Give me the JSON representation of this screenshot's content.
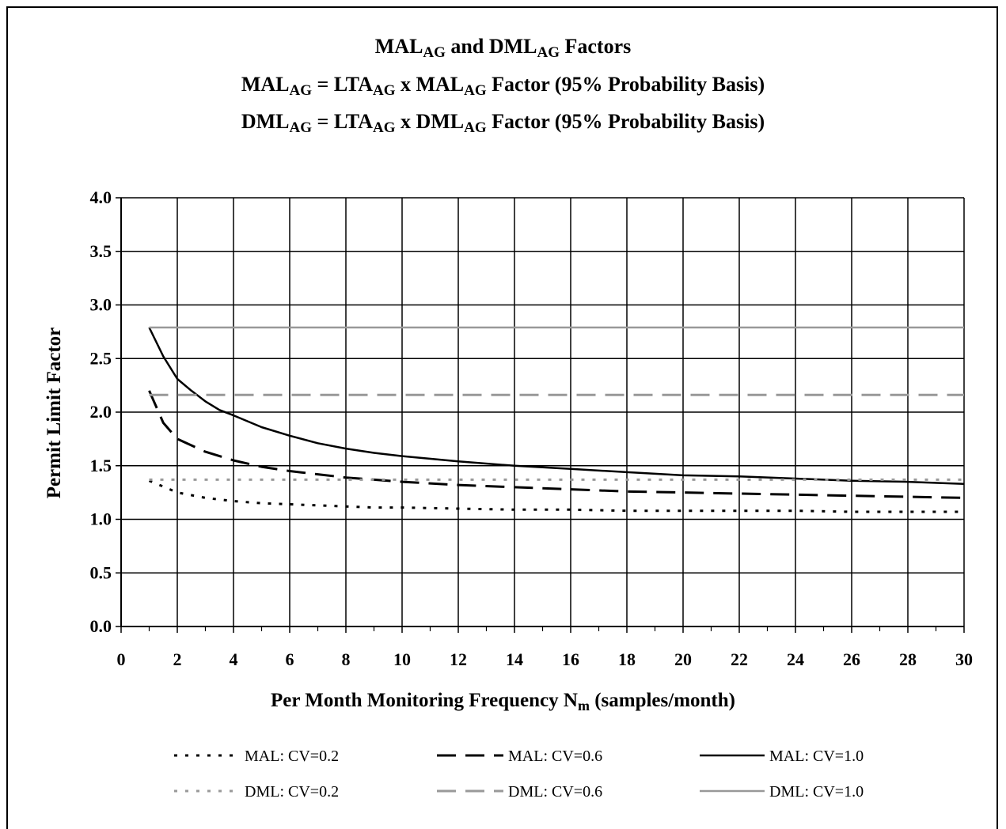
{
  "title": {
    "line1": {
      "a": "MAL",
      "a_sub": "AG",
      "b": " and DML",
      "b_sub": "AG",
      "c": " Factors"
    },
    "line2": {
      "a": "MAL",
      "a_sub": "AG",
      "b": " = LTA",
      "b_sub": "AG",
      "c": " x MAL",
      "c_sub": "AG",
      "d": " Factor  (95% Probability Basis)"
    },
    "line3": {
      "a": "DML",
      "a_sub": "AG",
      "b": " = LTA",
      "b_sub": "AG",
      "c": " x DML",
      "c_sub": "AG",
      "d": " Factor  (95% Probability Basis)"
    }
  },
  "chart_data": {
    "type": "line",
    "ylabel": "Permit Limit Factor",
    "xlabel": {
      "main": "Per Month Monitoring Frequency N",
      "sub": "m",
      "tail": " (samples/month)"
    },
    "xlim": [
      0,
      30
    ],
    "ylim": [
      0,
      4
    ],
    "xticks": [
      "0",
      "2",
      "4",
      "6",
      "8",
      "10",
      "12",
      "14",
      "16",
      "18",
      "20",
      "22",
      "24",
      "26",
      "28",
      "30"
    ],
    "yticks": [
      "0.0",
      "0.5",
      "1.0",
      "1.5",
      "2.0",
      "2.5",
      "3.0",
      "3.5",
      "4.0"
    ],
    "grid": true,
    "legend_position": "bottom",
    "series": [
      {
        "name": "MAL: CV=0.2",
        "color": "#000000",
        "style": "dotted",
        "x": [
          1,
          2,
          3,
          4,
          5,
          6,
          7,
          8,
          9,
          10,
          12,
          14,
          16,
          18,
          20,
          22,
          24,
          26,
          28,
          30
        ],
        "y": [
          1.36,
          1.25,
          1.2,
          1.17,
          1.15,
          1.14,
          1.13,
          1.12,
          1.11,
          1.11,
          1.1,
          1.09,
          1.09,
          1.08,
          1.08,
          1.08,
          1.08,
          1.07,
          1.07,
          1.07
        ]
      },
      {
        "name": "MAL: CV=0.6",
        "color": "#000000",
        "style": "dashed",
        "x": [
          1,
          1.5,
          2,
          3,
          4,
          5,
          6,
          7,
          8,
          9,
          10,
          12,
          14,
          16,
          18,
          20,
          22,
          24,
          26,
          28,
          30
        ],
        "y": [
          2.2,
          1.9,
          1.75,
          1.63,
          1.55,
          1.49,
          1.45,
          1.42,
          1.39,
          1.37,
          1.35,
          1.32,
          1.3,
          1.28,
          1.26,
          1.25,
          1.24,
          1.23,
          1.22,
          1.21,
          1.2
        ]
      },
      {
        "name": "MAL: CV=1.0",
        "color": "#000000",
        "style": "solid",
        "x": [
          1,
          1.5,
          2,
          2.5,
          3,
          3.5,
          4,
          5,
          6,
          7,
          8,
          9,
          10,
          12,
          14,
          16,
          18,
          20,
          22,
          24,
          26,
          28,
          30
        ],
        "y": [
          2.79,
          2.52,
          2.31,
          2.2,
          2.1,
          2.02,
          1.97,
          1.86,
          1.78,
          1.71,
          1.66,
          1.62,
          1.59,
          1.54,
          1.5,
          1.47,
          1.44,
          1.41,
          1.4,
          1.38,
          1.36,
          1.35,
          1.33
        ]
      },
      {
        "name": "DML: CV=0.2",
        "color": "#999999",
        "style": "dotted",
        "x": [
          1,
          30
        ],
        "y": [
          1.37,
          1.37
        ]
      },
      {
        "name": "DML: CV=0.6",
        "color": "#999999",
        "style": "dashed",
        "x": [
          1,
          30
        ],
        "y": [
          2.16,
          2.16
        ]
      },
      {
        "name": "DML: CV=1.0",
        "color": "#999999",
        "style": "solid",
        "x": [
          1,
          30
        ],
        "y": [
          2.79,
          2.79
        ]
      }
    ]
  }
}
